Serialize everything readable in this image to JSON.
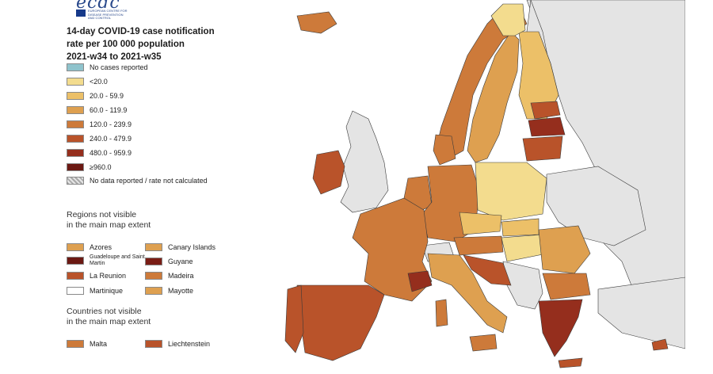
{
  "logo": {
    "text": "ecdc",
    "org_lines": [
      "EUROPEAN CENTRE FOR",
      "DISEASE PREVENTION",
      "AND CONTROL"
    ]
  },
  "title": {
    "line1": "14-day COVID-19 case notification",
    "line2": "rate per 100 000 population",
    "line3": "2021-w34 to 2021-w35"
  },
  "legend": {
    "items": [
      {
        "label": "No cases reported",
        "color": "#8fc3cc"
      },
      {
        "label": "<20.0",
        "color": "#f3dc8e"
      },
      {
        "label": "20.0 - 59.9",
        "color": "#ecc068"
      },
      {
        "label": "60.0 - 119.9",
        "color": "#dea050"
      },
      {
        "label": "120.0 - 239.9",
        "color": "#cd7a3a"
      },
      {
        "label": "240.0 - 479.9",
        "color": "#b9532a"
      },
      {
        "label": "480.0 - 959.9",
        "color": "#952e1d"
      },
      {
        "label": "≥960.0",
        "color": "#6b1913"
      },
      {
        "label": "No data reported / rate not calculated",
        "color": "hatch"
      }
    ]
  },
  "regions": {
    "heading_line1": "Regions not visible",
    "heading_line2": "in the main map extent",
    "items": [
      {
        "label": "Azores",
        "color": "#dea050"
      },
      {
        "label": "Canary Islands",
        "color": "#dea050"
      },
      {
        "label": "Guadeloupe and Saint Martin",
        "color": "#6b1913"
      },
      {
        "label": "Guyane",
        "color": "#7a1d15"
      },
      {
        "label": "La Reunion",
        "color": "#b9532a"
      },
      {
        "label": "Madeira",
        "color": "#cd7a3a"
      },
      {
        "label": "Martinique",
        "color": "#ffffff"
      },
      {
        "label": "Mayotte",
        "color": "#dea050"
      }
    ]
  },
  "countries": {
    "heading_line1": "Countries not visible",
    "heading_line2": "in the main map extent",
    "items": [
      {
        "label": "Malta",
        "color": "#cd7a3a"
      },
      {
        "label": "Liechtenstein",
        "color": "#b9532a"
      }
    ]
  },
  "map": {
    "sea_color": "#ffffff",
    "non_eu_color": "#e4e4e4",
    "border_color": "#3a3a3a"
  }
}
